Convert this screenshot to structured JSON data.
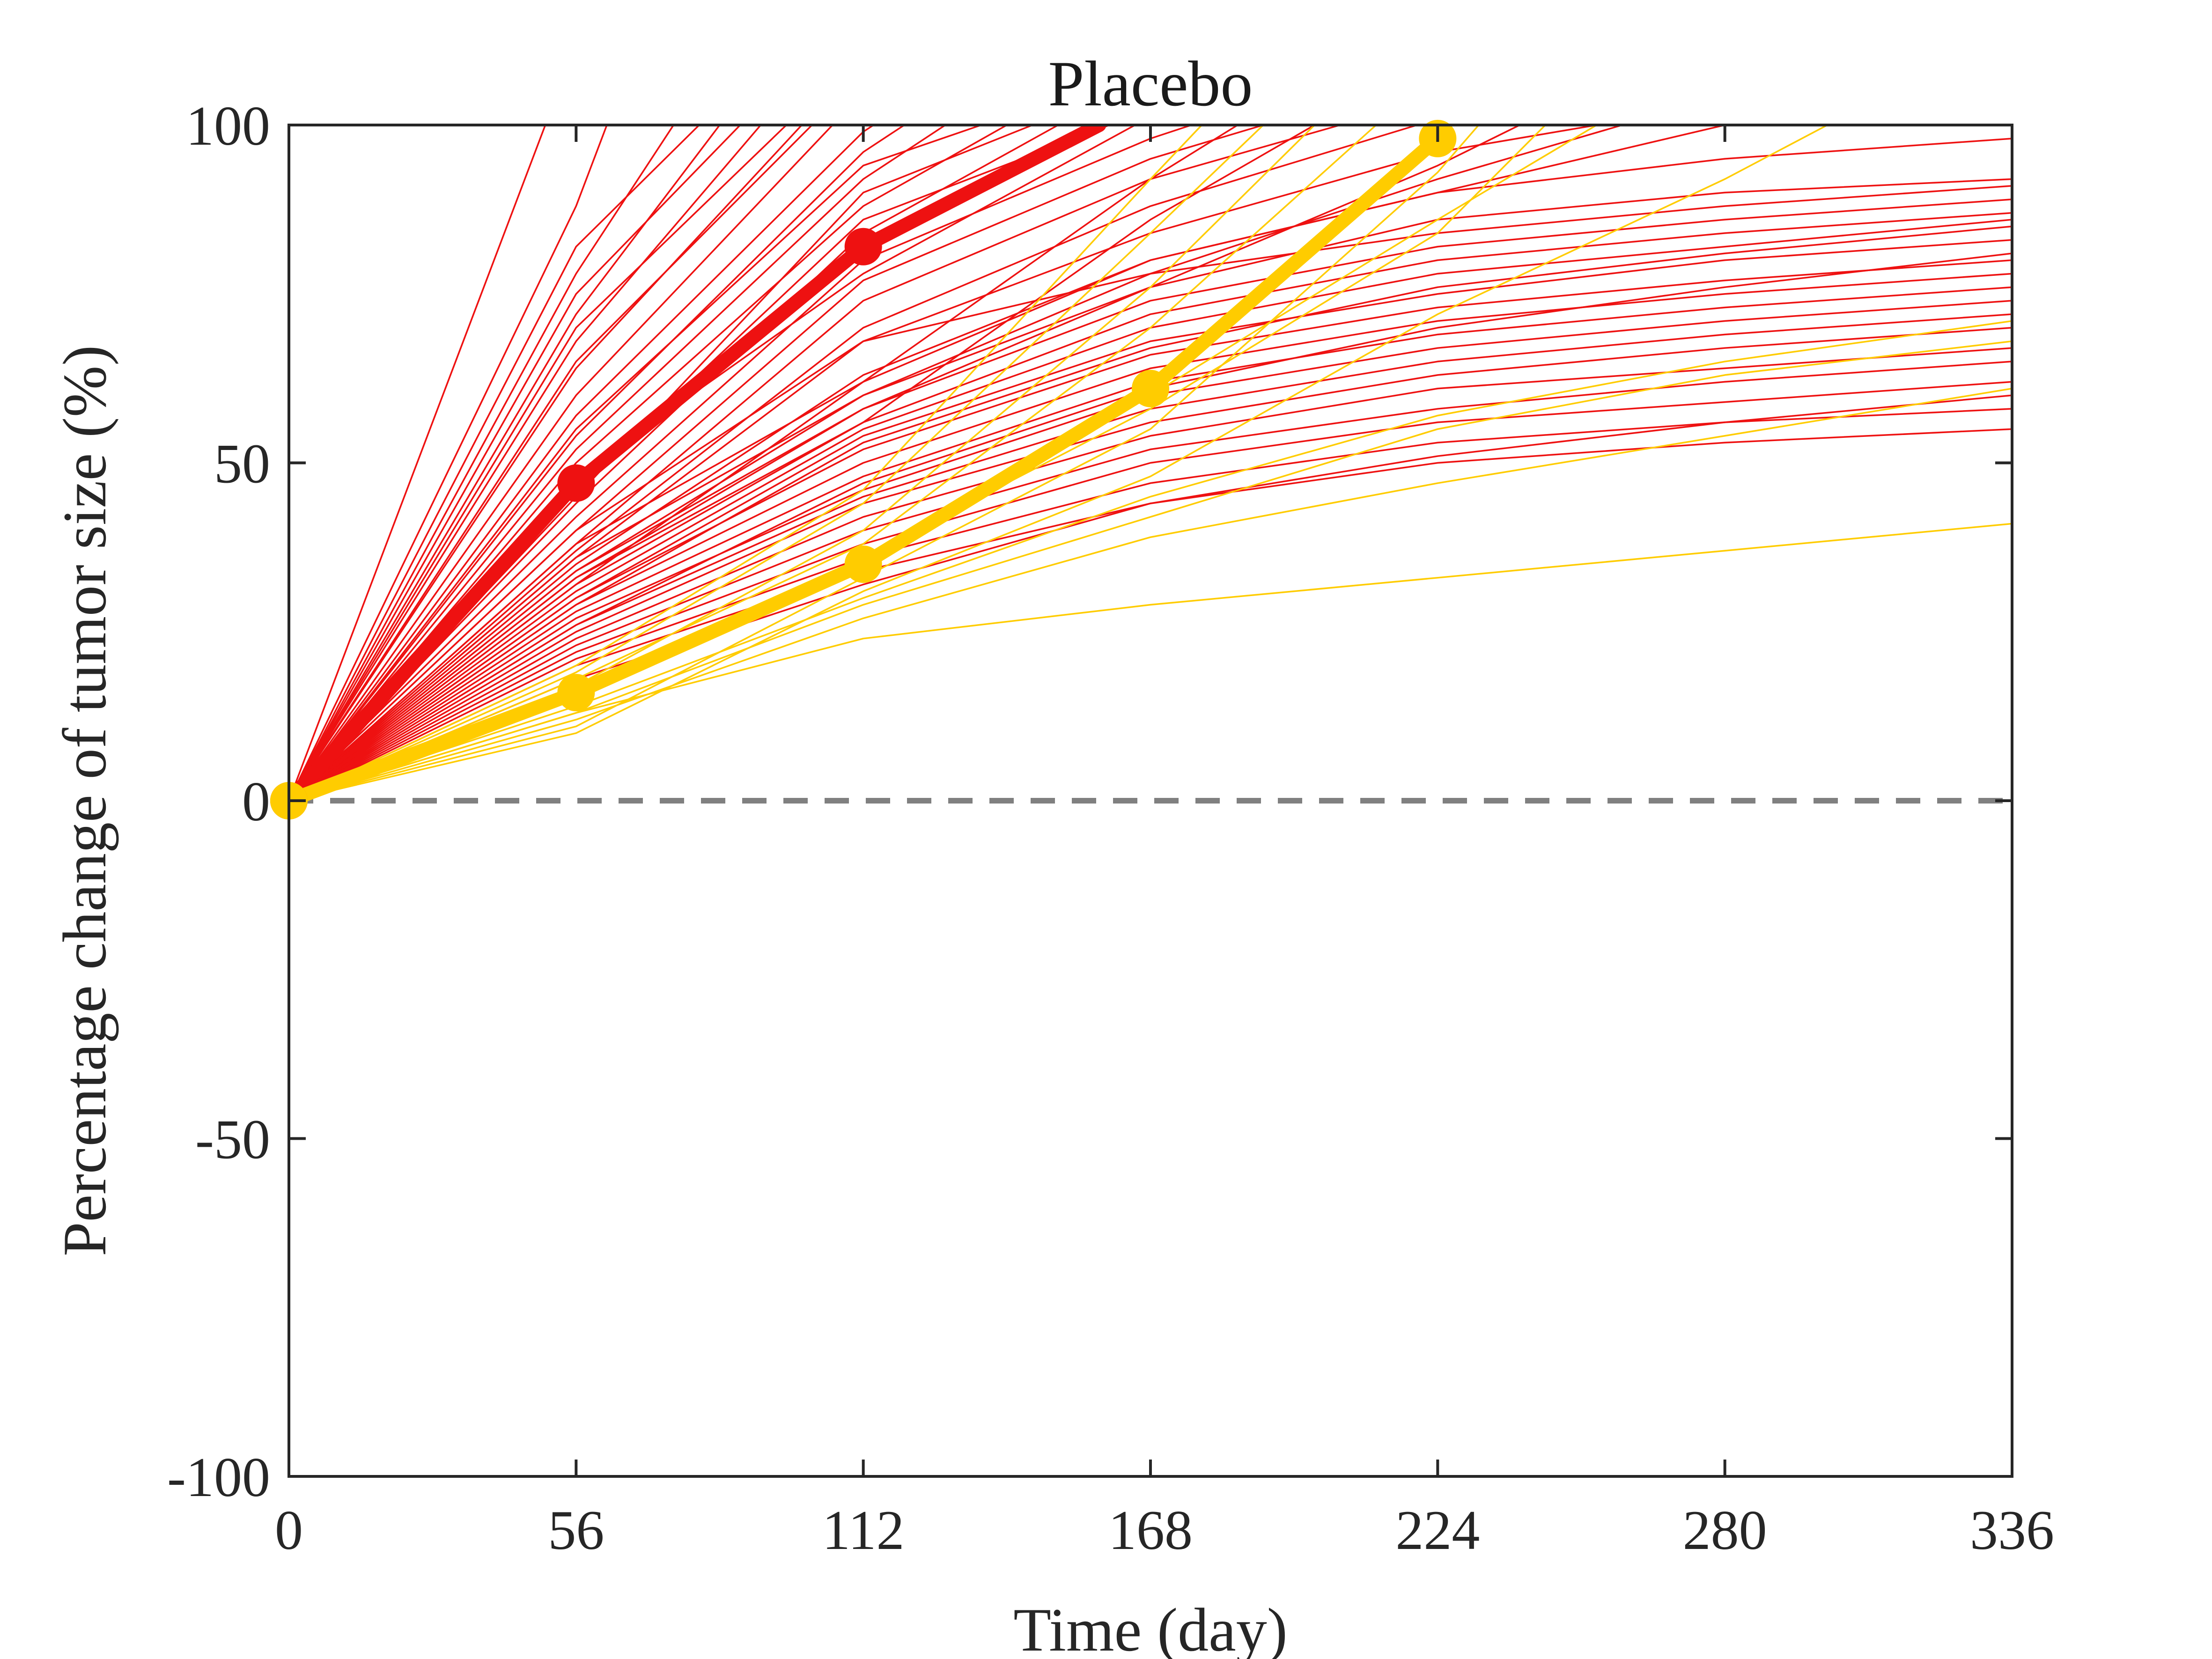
{
  "chart_data": {
    "type": "line",
    "title": "Placebo",
    "xlabel": "Time (day)",
    "ylabel": "Percentage change of tumor size (%)",
    "xlim": [
      0,
      336
    ],
    "ylim": [
      -100,
      100
    ],
    "x_ticks": [
      "0",
      "56",
      "112",
      "168",
      "224",
      "280",
      "336"
    ],
    "y_ticks": [
      "100",
      "50",
      "0",
      "-50",
      "-100"
    ],
    "x_tick_values": [
      0,
      56,
      112,
      168,
      224,
      280,
      336
    ],
    "y_tick_values": [
      100,
      50,
      0,
      -50,
      -100
    ],
    "grid": false,
    "reference_line": {
      "y": 0,
      "style": "dashed",
      "color": "#808080"
    },
    "colors": {
      "red": "#ee1111",
      "yellow": "#ffcc00",
      "reference": "#808080",
      "axis": "#262626"
    },
    "series": [
      {
        "color": "red",
        "emphasis": true,
        "x": [
          0,
          56,
          112,
          158
        ],
        "y": [
          0,
          47,
          82,
          100
        ]
      },
      {
        "color": "yellow",
        "emphasis": true,
        "x": [
          0,
          56,
          112,
          168,
          224
        ],
        "y": [
          0,
          16,
          35,
          61,
          98
        ]
      },
      {
        "color": "red",
        "x": [
          0,
          50
        ],
        "y": [
          0,
          100
        ]
      },
      {
        "color": "red",
        "x": [
          0,
          56,
          62
        ],
        "y": [
          0,
          88,
          100
        ]
      },
      {
        "color": "red",
        "x": [
          0,
          56,
          75
        ],
        "y": [
          0,
          78,
          100
        ]
      },
      {
        "color": "red",
        "x": [
          0,
          56,
          84
        ],
        "y": [
          0,
          72,
          100
        ]
      },
      {
        "color": "red",
        "x": [
          0,
          56,
          92
        ],
        "y": [
          0,
          68,
          100
        ]
      },
      {
        "color": "red",
        "x": [
          0,
          56,
          100
        ],
        "y": [
          0,
          64,
          100
        ]
      },
      {
        "color": "red",
        "x": [
          0,
          56,
          106
        ],
        "y": [
          0,
          60,
          100
        ]
      },
      {
        "color": "red",
        "x": [
          0,
          56,
          112,
          114
        ],
        "y": [
          0,
          57,
          99,
          100
        ]
      },
      {
        "color": "red",
        "x": [
          0,
          56,
          112,
          120
        ],
        "y": [
          0,
          54,
          96,
          100
        ]
      },
      {
        "color": "red",
        "x": [
          0,
          56,
          112,
          128
        ],
        "y": [
          0,
          52,
          92,
          100
        ]
      },
      {
        "color": "red",
        "x": [
          0,
          56,
          112,
          140
        ],
        "y": [
          0,
          50,
          88,
          100
        ]
      },
      {
        "color": "red",
        "x": [
          0,
          56,
          112,
          150
        ],
        "y": [
          0,
          44,
          84,
          100
        ]
      },
      {
        "color": "red",
        "x": [
          0,
          56,
          112,
          168,
          176
        ],
        "y": [
          0,
          42,
          80,
          98,
          100
        ]
      },
      {
        "color": "red",
        "x": [
          0,
          56,
          112,
          168,
          190
        ],
        "y": [
          0,
          40,
          77,
          95,
          100
        ]
      },
      {
        "color": "red",
        "x": [
          0,
          56,
          112,
          168,
          205
        ],
        "y": [
          0,
          38,
          74,
          92,
          100
        ]
      },
      {
        "color": "red",
        "x": [
          0,
          56,
          112,
          168,
          220
        ],
        "y": [
          0,
          37,
          70,
          88,
          100
        ]
      },
      {
        "color": "red",
        "x": [
          0,
          56,
          112,
          168,
          224,
          255
        ],
        "y": [
          0,
          36,
          68,
          84,
          96,
          100
        ]
      },
      {
        "color": "red",
        "x": [
          0,
          56,
          112,
          168,
          224,
          280,
          336
        ],
        "y": [
          0,
          35,
          63,
          80,
          90,
          95,
          98
        ]
      },
      {
        "color": "red",
        "x": [
          0,
          56,
          112,
          168,
          224,
          280,
          336
        ],
        "y": [
          0,
          34,
          60,
          76,
          86,
          90,
          92
        ]
      },
      {
        "color": "red",
        "x": [
          0,
          56,
          112,
          168,
          224,
          280,
          336
        ],
        "y": [
          0,
          33,
          58,
          74,
          82,
          86,
          89
        ]
      },
      {
        "color": "red",
        "x": [
          0,
          56,
          112,
          168,
          224,
          280,
          336
        ],
        "y": [
          0,
          32,
          56,
          72,
          80,
          84,
          87
        ]
      },
      {
        "color": "red",
        "x": [
          0,
          56,
          112,
          168,
          224,
          280,
          336
        ],
        "y": [
          0,
          31,
          55,
          70,
          78,
          82,
          86
        ]
      },
      {
        "color": "red",
        "x": [
          0,
          56,
          112,
          168,
          224,
          280,
          336
        ],
        "y": [
          0,
          30,
          54,
          68,
          75,
          80,
          83
        ]
      },
      {
        "color": "red",
        "x": [
          0,
          56,
          112,
          168,
          224,
          280,
          336
        ],
        "y": [
          0,
          30,
          52,
          66,
          73,
          77,
          80
        ]
      },
      {
        "color": "red",
        "x": [
          0,
          56,
          112,
          168,
          224,
          280,
          336
        ],
        "y": [
          0,
          29,
          50,
          64,
          71,
          75,
          78
        ]
      },
      {
        "color": "red",
        "x": [
          0,
          56,
          112,
          168,
          224,
          280,
          336
        ],
        "y": [
          0,
          28,
          48,
          62,
          69,
          73,
          76
        ]
      },
      {
        "color": "red",
        "x": [
          0,
          56,
          112,
          168,
          224,
          280,
          336
        ],
        "y": [
          0,
          27,
          46,
          60,
          67,
          71,
          74
        ]
      },
      {
        "color": "red",
        "x": [
          0,
          56,
          112,
          168,
          224,
          280,
          336
        ],
        "y": [
          0,
          26,
          45,
          58,
          65,
          69,
          72
        ]
      },
      {
        "color": "red",
        "x": [
          0,
          56,
          112,
          168,
          224,
          280,
          336
        ],
        "y": [
          0,
          25,
          44,
          56,
          63,
          67,
          70
        ]
      },
      {
        "color": "red",
        "x": [
          0,
          56,
          112,
          168,
          224,
          280,
          336
        ],
        "y": [
          0,
          24,
          42,
          54,
          61,
          64,
          67
        ]
      },
      {
        "color": "red",
        "x": [
          0,
          56,
          112,
          168,
          224,
          280,
          336
        ],
        "y": [
          0,
          23,
          40,
          52,
          58,
          62,
          65
        ]
      },
      {
        "color": "red",
        "x": [
          0,
          56,
          112,
          168,
          224,
          280,
          336
        ],
        "y": [
          0,
          22,
          38,
          50,
          56,
          59,
          62
        ]
      },
      {
        "color": "red",
        "x": [
          0,
          56,
          112,
          168,
          224,
          280,
          336
        ],
        "y": [
          0,
          21,
          36,
          47,
          53,
          56,
          58
        ]
      },
      {
        "color": "red",
        "x": [
          0,
          56,
          112,
          168,
          224,
          280,
          336
        ],
        "y": [
          0,
          20,
          34,
          44,
          50,
          53,
          55
        ]
      },
      {
        "color": "red",
        "x": [
          0,
          56,
          112,
          168,
          224,
          280,
          336
        ],
        "y": [
          0,
          40,
          68,
          78,
          84,
          88,
          91
        ]
      },
      {
        "color": "red",
        "x": [
          0,
          56,
          112,
          168,
          224,
          280
        ],
        "y": [
          0,
          38,
          62,
          80,
          90,
          100
        ]
      },
      {
        "color": "red",
        "x": [
          0,
          56,
          112,
          168,
          224,
          260
        ],
        "y": [
          0,
          36,
          60,
          78,
          92,
          100
        ]
      },
      {
        "color": "red",
        "x": [
          0,
          56,
          112,
          168,
          224,
          240
        ],
        "y": [
          0,
          34,
          58,
          76,
          94,
          100
        ]
      },
      {
        "color": "red",
        "x": [
          0,
          56,
          112,
          168,
          200
        ],
        "y": [
          0,
          33,
          56,
          86,
          100
        ]
      },
      {
        "color": "red",
        "x": [
          0,
          56,
          112,
          168,
          185
        ],
        "y": [
          0,
          32,
          62,
          92,
          100
        ]
      },
      {
        "color": "red",
        "x": [
          0,
          56,
          112,
          165
        ],
        "y": [
          0,
          48,
          78,
          100
        ]
      },
      {
        "color": "red",
        "x": [
          0,
          56,
          112,
          160
        ],
        "y": [
          0,
          46,
          86,
          100
        ]
      },
      {
        "color": "red",
        "x": [
          0,
          56,
          112,
          145
        ],
        "y": [
          0,
          45,
          90,
          100
        ]
      },
      {
        "color": "red",
        "x": [
          0,
          56,
          112,
          135
        ],
        "y": [
          0,
          55,
          94,
          100
        ]
      },
      {
        "color": "red",
        "x": [
          0,
          56,
          102
        ],
        "y": [
          0,
          65,
          100
        ]
      },
      {
        "color": "red",
        "x": [
          0,
          56,
          97
        ],
        "y": [
          0,
          70,
          100
        ]
      },
      {
        "color": "red",
        "x": [
          0,
          56,
          88
        ],
        "y": [
          0,
          75,
          100
        ]
      },
      {
        "color": "red",
        "x": [
          0,
          56,
          80
        ],
        "y": [
          0,
          82,
          100
        ]
      },
      {
        "color": "red",
        "x": [
          0,
          56,
          112,
          168,
          224,
          280,
          336
        ],
        "y": [
          0,
          18,
          32,
          44,
          51,
          56,
          60
        ]
      },
      {
        "color": "red",
        "x": [
          0,
          56,
          112,
          168,
          224,
          280,
          336
        ],
        "y": [
          0,
          26,
          47,
          61,
          70,
          76,
          81
        ]
      },
      {
        "color": "red",
        "x": [
          0,
          56,
          112,
          168,
          224,
          280,
          336
        ],
        "y": [
          0,
          29,
          53,
          67,
          76,
          81,
          85
        ]
      },
      {
        "color": "yellow",
        "x": [
          0,
          56,
          112,
          168,
          224,
          280,
          336
        ],
        "y": [
          0,
          13,
          24,
          29,
          33,
          37,
          41
        ]
      },
      {
        "color": "yellow",
        "x": [
          0,
          56,
          112,
          168,
          224,
          280,
          336
        ],
        "y": [
          0,
          12,
          27,
          39,
          47,
          54,
          61
        ]
      },
      {
        "color": "yellow",
        "x": [
          0,
          56,
          112,
          168,
          224,
          280,
          336
        ],
        "y": [
          0,
          14,
          30,
          45,
          57,
          65,
          71
        ]
      },
      {
        "color": "yellow",
        "x": [
          0,
          56,
          112,
          168,
          224,
          255
        ],
        "y": [
          0,
          16,
          34,
          60,
          86,
          100
        ]
      },
      {
        "color": "yellow",
        "x": [
          0,
          56,
          112,
          168,
          224,
          245
        ],
        "y": [
          0,
          15,
          36,
          58,
          84,
          100
        ]
      },
      {
        "color": "yellow",
        "x": [
          0,
          56,
          112,
          168,
          212
        ],
        "y": [
          0,
          18,
          38,
          70,
          100
        ]
      },
      {
        "color": "yellow",
        "x": [
          0,
          56,
          112,
          168,
          200
        ],
        "y": [
          0,
          17,
          40,
          76,
          100
        ]
      },
      {
        "color": "yellow",
        "x": [
          0,
          56,
          112,
          168,
          190
        ],
        "y": [
          0,
          19,
          44,
          84,
          100
        ]
      },
      {
        "color": "yellow",
        "x": [
          0,
          56,
          112,
          168,
          178
        ],
        "y": [
          0,
          20,
          46,
          92,
          100
        ]
      },
      {
        "color": "yellow",
        "x": [
          0,
          56,
          112,
          168,
          224,
          232
        ],
        "y": [
          0,
          11,
          33,
          55,
          93,
          100
        ]
      },
      {
        "color": "yellow",
        "x": [
          0,
          56,
          112,
          168,
          224,
          280,
          300
        ],
        "y": [
          0,
          10,
          31,
          48,
          72,
          92,
          100
        ]
      },
      {
        "color": "yellow",
        "x": [
          0,
          56,
          112,
          168,
          224,
          280,
          336
        ],
        "y": [
          0,
          13,
          29,
          42,
          55,
          63,
          68
        ]
      }
    ]
  }
}
